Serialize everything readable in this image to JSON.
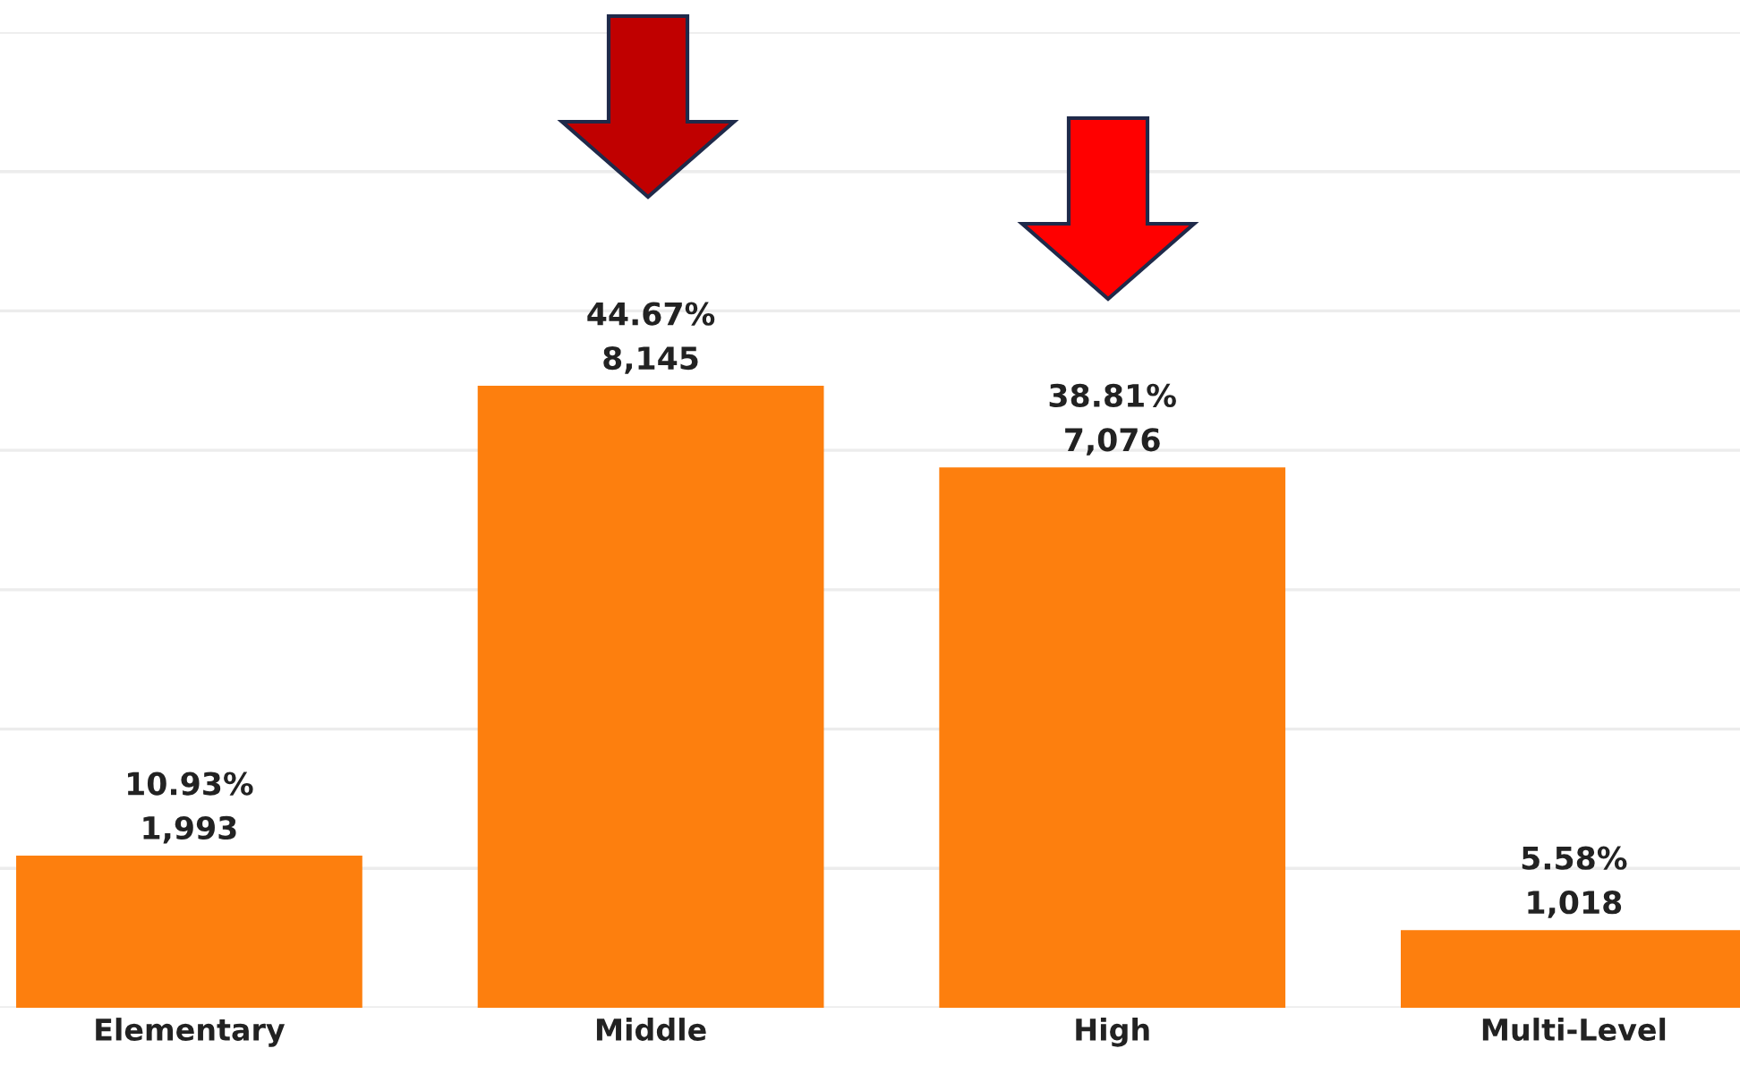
{
  "chart_data": {
    "type": "bar",
    "categories": [
      "Elementary",
      "Middle",
      "High",
      "Multi-Level"
    ],
    "values": [
      1993,
      8145,
      7076,
      1018
    ],
    "value_labels": [
      "10.93%\n1,993",
      "44.67%\n8,145",
      "38.81%\n7,076",
      "5.58%\n1,018"
    ],
    "color": "#fd7f0e",
    "ylim": [
      0,
      12775
    ],
    "yticks": [
      {
        "value": 0,
        "label": null
      },
      {
        "value": 1825,
        "label": null
      },
      {
        "value": 3650,
        "label": null
      },
      {
        "value": 5475,
        "label": null
      },
      {
        "value": 7300,
        "label": null
      },
      {
        "value": 9125,
        "label": null
      },
      {
        "value": 10950,
        "label": null
      },
      {
        "value": 12775,
        "label": null
      }
    ],
    "tick_labels": "x",
    "grid": "y"
  }
}
